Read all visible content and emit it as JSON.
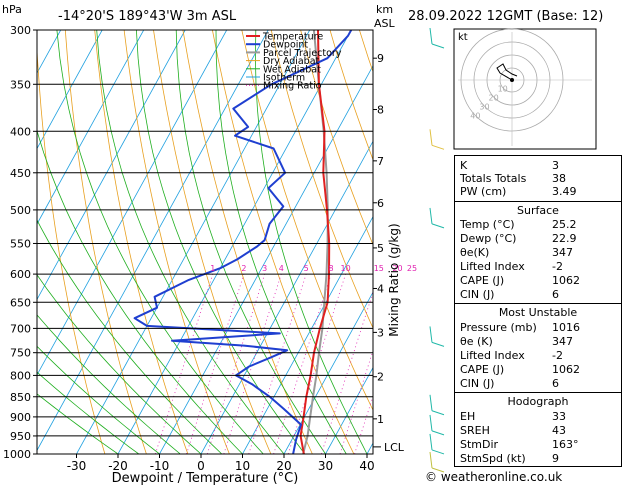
{
  "header": {
    "location": "-14°20'S  189°43'W  3m  ASL",
    "datetime": "28.09.2022  12GMT  (Base: 12)",
    "hpa_label": "hPa",
    "km_label": "km",
    "asl_label": "ASL"
  },
  "legend": [
    "Temperature",
    "Dewpoint",
    "Parcel Trajectory",
    "Dry Adiabat",
    "Wet Adiabat",
    "Isotherm",
    "Mixing Ratio"
  ],
  "colors": {
    "temperature": "#e02020",
    "dewpoint": "#1f3fd0",
    "parcel": "#9a9a9a",
    "dry_adiabat": "#e8a020",
    "wet_adiabat": "#1fae1f",
    "isotherm": "#1fa0e0",
    "mixing_ratio": "#e020b0",
    "wind": "#20b8a8"
  },
  "axes": {
    "xlabel": "Dewpoint / Temperature (°C)",
    "ylabel_right": "Mixing Ratio (g/kg)",
    "x_ticks": [
      -30,
      -20,
      -10,
      0,
      10,
      20,
      30,
      40
    ],
    "pressure_levels": [
      300,
      350,
      400,
      450,
      500,
      550,
      600,
      650,
      700,
      750,
      800,
      850,
      900,
      950,
      1000
    ],
    "km_ticks": [
      {
        "label": "9",
        "p": 325
      },
      {
        "label": "8",
        "p": 376
      },
      {
        "label": "7",
        "p": 435
      },
      {
        "label": "6",
        "p": 490
      },
      {
        "label": "5",
        "p": 557
      },
      {
        "label": "4",
        "p": 625
      },
      {
        "label": "3",
        "p": 708
      },
      {
        "label": "2",
        "p": 803
      },
      {
        "label": "1",
        "p": 905
      }
    ],
    "lcl_label": "LCL",
    "lcl_p": 980,
    "mixing_ratio_labels": [
      {
        "label": "1",
        "x": -21
      },
      {
        "label": "2",
        "x": -13.5
      },
      {
        "label": "3",
        "x": -8.5
      },
      {
        "label": "4",
        "x": -4.5
      },
      {
        "label": "5",
        "x": 1.5
      },
      {
        "label": "8",
        "x": 7.5
      },
      {
        "label": "10",
        "x": 11
      },
      {
        "label": "15",
        "x": 19
      },
      {
        "label": "20",
        "x": 23.5
      },
      {
        "label": "25",
        "x": 27
      }
    ]
  },
  "chart_data": {
    "type": "line",
    "x_unit": "°C",
    "y_unit": "hPa",
    "ylim": [
      1000,
      300
    ],
    "series": [
      {
        "name": "Temperature",
        "points": [
          [
            1000,
            24.8
          ],
          [
            950,
            21.6
          ],
          [
            900,
            19.8
          ],
          [
            850,
            17.8
          ],
          [
            800,
            16
          ],
          [
            750,
            13.8
          ],
          [
            700,
            12
          ],
          [
            650,
            10.4
          ],
          [
            600,
            7
          ],
          [
            550,
            3
          ],
          [
            500,
            -2
          ],
          [
            450,
            -7.8
          ],
          [
            400,
            -13
          ],
          [
            350,
            -20.6
          ],
          [
            300,
            -28
          ]
        ]
      },
      {
        "name": "Dewpoint",
        "points": [
          [
            1000,
            22.2
          ],
          [
            960,
            21
          ],
          [
            920,
            20.2
          ],
          [
            880,
            14
          ],
          [
            850,
            9
          ],
          [
            820,
            3
          ],
          [
            800,
            -2
          ],
          [
            780,
            0
          ],
          [
            760,
            4
          ],
          [
            745,
            7
          ],
          [
            735,
            -4
          ],
          [
            725,
            -22
          ],
          [
            710,
            3
          ],
          [
            695,
            -30
          ],
          [
            680,
            -34
          ],
          [
            660,
            -30
          ],
          [
            640,
            -32
          ],
          [
            610,
            -26
          ],
          [
            590,
            -20
          ],
          [
            575,
            -17
          ],
          [
            555,
            -14
          ],
          [
            545,
            -13
          ],
          [
            520,
            -14
          ],
          [
            495,
            -13
          ],
          [
            470,
            -19
          ],
          [
            450,
            -17
          ],
          [
            420,
            -23
          ],
          [
            405,
            -34
          ],
          [
            395,
            -32
          ],
          [
            375,
            -38
          ],
          [
            350,
            -32
          ],
          [
            325,
            -22
          ],
          [
            305,
            -20
          ],
          [
            300,
            -20
          ]
        ]
      },
      {
        "name": "Parcel Trajectory",
        "points": [
          [
            1000,
            24.6
          ],
          [
            950,
            23.3
          ],
          [
            900,
            21.4
          ],
          [
            850,
            19.4
          ],
          [
            800,
            17.4
          ],
          [
            750,
            15
          ],
          [
            700,
            12.6
          ],
          [
            650,
            9.6
          ],
          [
            600,
            6.4
          ],
          [
            550,
            2.6
          ],
          [
            500,
            -1.8
          ],
          [
            450,
            -7
          ],
          [
            400,
            -13.2
          ],
          [
            350,
            -20.6
          ],
          [
            300,
            -29
          ]
        ]
      }
    ]
  },
  "hodograph": {
    "label": "kt",
    "ring_labels": [
      "10",
      "20",
      "30",
      "40"
    ]
  },
  "wind_barbs": [
    {
      "p": 1000,
      "color": "#c0c040"
    },
    {
      "p": 950,
      "color": "#20b8a8"
    },
    {
      "p": 900,
      "color": "#20b8a8"
    },
    {
      "p": 850,
      "color": "#20b8a8"
    },
    {
      "p": 700,
      "color": "#20b8a8"
    },
    {
      "p": 500,
      "color": "#20b8a8"
    },
    {
      "p": 400,
      "color": "#e0c040"
    },
    {
      "p": 300,
      "color": "#20b8a8"
    }
  ],
  "stats": {
    "top": [
      {
        "k": "K",
        "v": "3"
      },
      {
        "k": "Totals Totals",
        "v": "38"
      },
      {
        "k": "PW (cm)",
        "v": "3.49"
      }
    ],
    "surface": {
      "title": "Surface",
      "rows": [
        {
          "k": "Temp (°C)",
          "v": "25.2"
        },
        {
          "k": "Dewp (°C)",
          "v": "22.9"
        },
        {
          "k": "θe(K)",
          "v": "347"
        },
        {
          "k": "Lifted Index",
          "v": "-2"
        },
        {
          "k": "CAPE (J)",
          "v": "1062"
        },
        {
          "k": "CIN (J)",
          "v": "6"
        }
      ]
    },
    "unstable": {
      "title": "Most Unstable",
      "rows": [
        {
          "k": "Pressure (mb)",
          "v": "1016"
        },
        {
          "k": "θe (K)",
          "v": "347"
        },
        {
          "k": "Lifted Index",
          "v": "-2"
        },
        {
          "k": "CAPE (J)",
          "v": "1062"
        },
        {
          "k": "CIN (J)",
          "v": "6"
        }
      ]
    },
    "hodograph": {
      "title": "Hodograph",
      "rows": [
        {
          "k": "EH",
          "v": "33"
        },
        {
          "k": "SREH",
          "v": "43"
        },
        {
          "k": "StmDir",
          "v": "163°"
        },
        {
          "k": "StmSpd (kt)",
          "v": "9"
        }
      ]
    }
  },
  "copyright": "© weatheronline.co.uk"
}
